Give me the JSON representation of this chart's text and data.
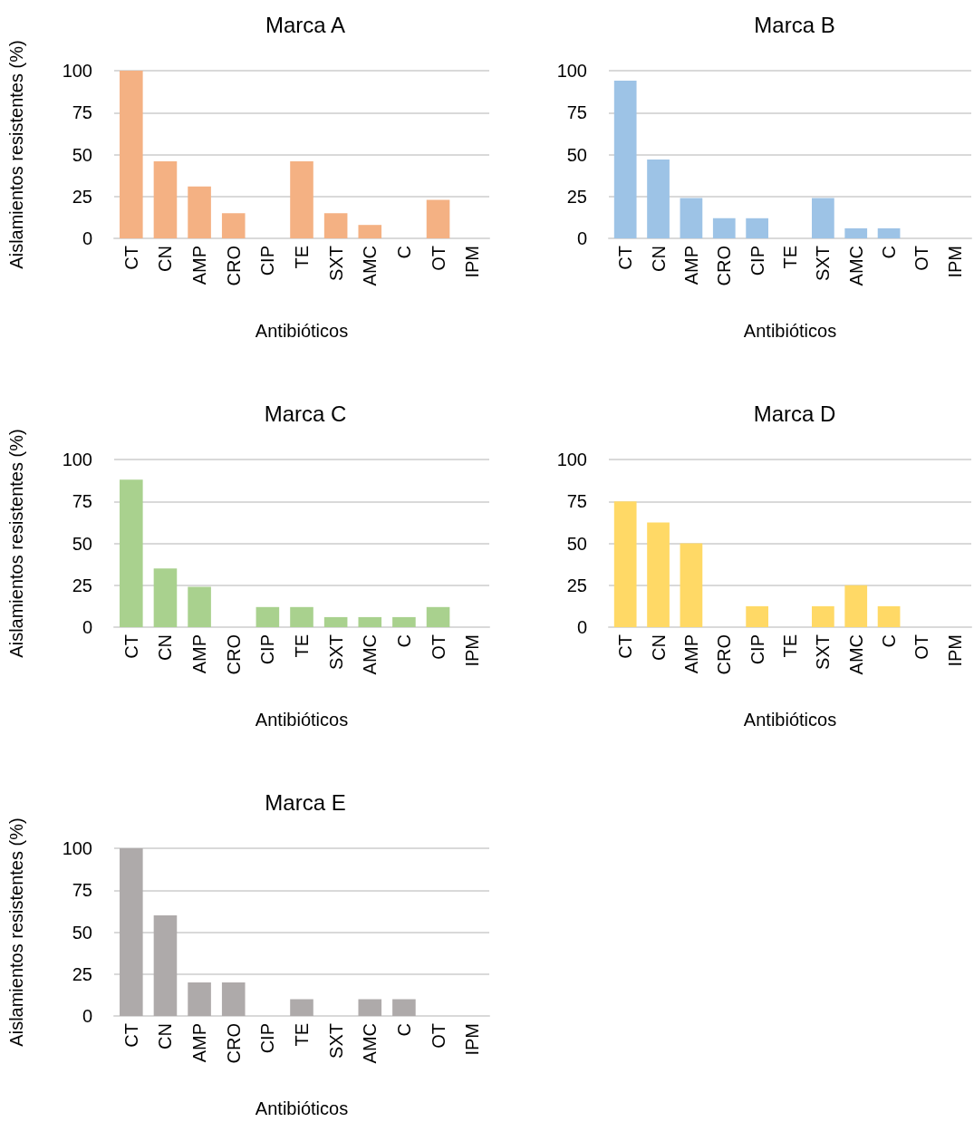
{
  "chart_data": [
    {
      "type": "bar",
      "title": "Marca A",
      "xlabel": "Antibióticos",
      "ylabel": "Aislamientos resistentes (%)",
      "categories": [
        "CT",
        "CN",
        "AMP",
        "CRO",
        "CIP",
        "TE",
        "SXT",
        "AMC",
        "C",
        "OT",
        "IPM"
      ],
      "values": [
        100,
        46,
        31,
        15,
        0,
        46,
        15,
        8,
        0,
        23,
        0
      ],
      "color": "#f4b183",
      "ylim": [
        0,
        100
      ],
      "yticks": [
        0,
        25,
        50,
        75,
        100
      ],
      "grid": "y"
    },
    {
      "type": "bar",
      "title": "Marca B",
      "xlabel": "Antibióticos",
      "categories": [
        "CT",
        "CN",
        "AMP",
        "CRO",
        "CIP",
        "TE",
        "SXT",
        "AMC",
        "C",
        "OT",
        "IPM"
      ],
      "values": [
        94,
        47,
        24,
        12,
        12,
        0,
        24,
        6,
        6,
        0,
        0
      ],
      "color": "#9dc3e6",
      "ylim": [
        0,
        100
      ],
      "yticks": [
        0,
        25,
        50,
        75,
        100
      ],
      "grid": "y"
    },
    {
      "type": "bar",
      "title": "Marca C",
      "xlabel": "Antibióticos",
      "ylabel": "Aislamientos resistentes (%)",
      "categories": [
        "CT",
        "CN",
        "AMP",
        "CRO",
        "CIP",
        "TE",
        "SXT",
        "AMC",
        "C",
        "OT",
        "IPM"
      ],
      "values": [
        88,
        35,
        24,
        0,
        12,
        12,
        6,
        6,
        6,
        12,
        0
      ],
      "color": "#a9d18e",
      "ylim": [
        0,
        100
      ],
      "yticks": [
        0,
        25,
        50,
        75,
        100
      ],
      "grid": "y"
    },
    {
      "type": "bar",
      "title": "Marca D",
      "xlabel": "Antibióticos",
      "categories": [
        "CT",
        "CN",
        "AMP",
        "CRO",
        "CIP",
        "TE",
        "SXT",
        "AMC",
        "C",
        "OT",
        "IPM"
      ],
      "values": [
        75,
        62.5,
        50,
        0,
        12.5,
        0,
        12.5,
        25,
        12.5,
        0,
        0
      ],
      "color": "#ffd966",
      "ylim": [
        0,
        100
      ],
      "yticks": [
        0,
        25,
        50,
        75,
        100
      ],
      "grid": "y"
    },
    {
      "type": "bar",
      "title": "Marca E",
      "xlabel": "Antibióticos",
      "ylabel": "Aislamientos resistentes (%)",
      "categories": [
        "CT",
        "CN",
        "AMP",
        "CRO",
        "CIP",
        "TE",
        "SXT",
        "AMC",
        "C",
        "OT",
        "IPM"
      ],
      "values": [
        100,
        60,
        20,
        20,
        0,
        10,
        0,
        10,
        10,
        0,
        0
      ],
      "color": "#aeaaaa",
      "ylim": [
        0,
        100
      ],
      "yticks": [
        0,
        25,
        50,
        75,
        100
      ],
      "grid": "y"
    }
  ]
}
